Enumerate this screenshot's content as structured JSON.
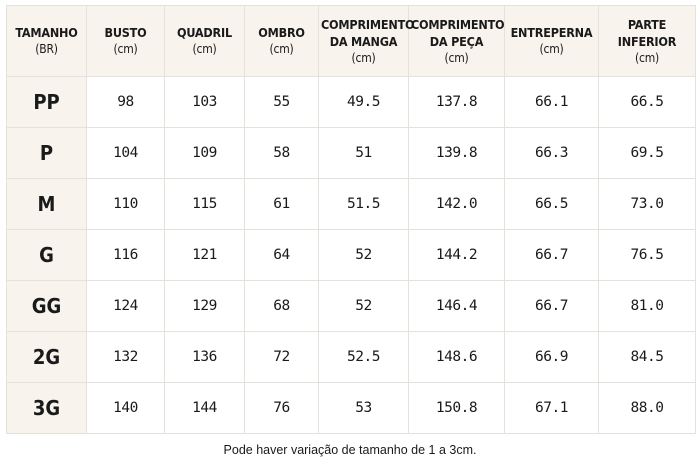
{
  "table": {
    "headers": [
      {
        "label": "TAMANHO",
        "unit": "(BR)"
      },
      {
        "label": "BUSTO",
        "unit": "(cm)"
      },
      {
        "label": "QUADRIL",
        "unit": "(cm)"
      },
      {
        "label": "OMBRO",
        "unit": "(cm)"
      },
      {
        "label": "COMPRIMENTO DA MANGA",
        "unit": "(cm)"
      },
      {
        "label": "COMPRIMENTO DA PEÇA",
        "unit": "(cm)"
      },
      {
        "label": "ENTREPERNA",
        "unit": "(cm)"
      },
      {
        "label": "PARTE INFERIOR",
        "unit": "(cm)"
      }
    ],
    "rows": [
      [
        "PP",
        "98",
        "103",
        "55",
        "49.5",
        "137.8",
        "66.1",
        "66.5"
      ],
      [
        "P",
        "104",
        "109",
        "58",
        "51",
        "139.8",
        "66.3",
        "69.5"
      ],
      [
        "M",
        "110",
        "115",
        "61",
        "51.5",
        "142.0",
        "66.5",
        "73.0"
      ],
      [
        "G",
        "116",
        "121",
        "64",
        "52",
        "144.2",
        "66.7",
        "76.5"
      ],
      [
        "GG",
        "124",
        "129",
        "68",
        "52",
        "146.4",
        "66.7",
        "81.0"
      ],
      [
        "2G",
        "132",
        "136",
        "72",
        "52.5",
        "148.6",
        "66.9",
        "84.5"
      ],
      [
        "3G",
        "140",
        "144",
        "76",
        "53",
        "150.8",
        "67.1",
        "88.0"
      ]
    ]
  },
  "footnote": "Pode haver variação de tamanho de 1 a 3cm.",
  "colors": {
    "header_bg": "#f8f3ec",
    "border": "#e6e1da",
    "text": "#1a1a1a"
  }
}
